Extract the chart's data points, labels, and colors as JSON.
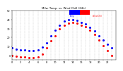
{
  "title": "Milw. Temp. vs. Wind Chill (24h)",
  "legend_temp": "Temp",
  "legend_wc": "Wind Chill",
  "temp_color": "#0000ff",
  "wc_color": "#ff0000",
  "background": "#ffffff",
  "grid_color": "#aaaaaa",
  "xlim": [
    0,
    24
  ],
  "ylim": [
    -5,
    50
  ],
  "yticks": [
    0,
    10,
    20,
    30,
    40,
    50
  ],
  "xticks": [
    0,
    1,
    2,
    3,
    4,
    5,
    6,
    7,
    8,
    9,
    10,
    11,
    12,
    13,
    14,
    15,
    16,
    17,
    18,
    19,
    20,
    21,
    22,
    23
  ],
  "xlabel_labels": [
    "0",
    "1",
    "2",
    "3",
    "4",
    "5",
    "6",
    "7",
    "8",
    "9",
    "10",
    "11",
    "12",
    "13",
    "14",
    "15",
    "16",
    "17",
    "18",
    "19",
    "20",
    "21",
    "22",
    "23"
  ],
  "temp_x": [
    0,
    1,
    2,
    3,
    4,
    5,
    6,
    7,
    8,
    9,
    10,
    11,
    12,
    13,
    14,
    15,
    16,
    17,
    18,
    19,
    20,
    21,
    22,
    23
  ],
  "temp_y": [
    8,
    7,
    6,
    6,
    5,
    5,
    6,
    9,
    14,
    22,
    28,
    34,
    38,
    40,
    40,
    39,
    37,
    35,
    31,
    27,
    22,
    17,
    12,
    8
  ],
  "wc_x": [
    0,
    1,
    2,
    3,
    4,
    5,
    6,
    7,
    8,
    9,
    10,
    11,
    12,
    13,
    14,
    15,
    16,
    17,
    18,
    19,
    20,
    21,
    22,
    23
  ],
  "wc_y": [
    0,
    -1,
    -2,
    -2,
    -3,
    -3,
    -2,
    1,
    8,
    16,
    22,
    30,
    34,
    36,
    37,
    36,
    34,
    32,
    28,
    23,
    17,
    11,
    5,
    0
  ]
}
